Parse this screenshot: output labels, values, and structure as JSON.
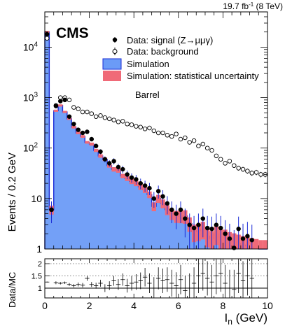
{
  "header": {
    "lumi_prefix": "19.7 fb",
    "lumi_exp": "-1",
    "lumi_suffix": " (8 TeV)"
  },
  "experiment_label": "CMS",
  "region_label": "Barrel",
  "chart_data": [
    {
      "type": "line",
      "title": "",
      "xlabel": "I",
      "xlabel_sub": "n",
      "xlabel_unit": " (GeV)",
      "ylabel": "Events / 0.2 GeV",
      "xlim": [
        0,
        10
      ],
      "ylim": [
        1,
        50000
      ],
      "yscale": "log",
      "grid": false,
      "legend_position": "top-right",
      "x_ticks": [
        "0",
        "2",
        "4",
        "6",
        "8",
        "10"
      ],
      "y_ticks": [
        {
          "base": "1",
          "exp": ""
        },
        {
          "base": "10",
          "exp": ""
        },
        {
          "base": "10",
          "exp": "2"
        },
        {
          "base": "10",
          "exp": "3"
        },
        {
          "base": "10",
          "exp": "4"
        }
      ],
      "bin_width": 0.2,
      "bin_edges_start": 0,
      "colors": {
        "simulation_fill": "#6b9bf7",
        "simulation_line": "#1a2bd6",
        "uncertainty_fill": "#f06a78",
        "signal_point": "#000000",
        "signal_error": "#1a2bd6",
        "background_point": "#000000"
      },
      "legend": [
        {
          "key": "signal",
          "label": "Data: signal (Z→μμγ)"
        },
        {
          "key": "background",
          "label": "Data: background"
        },
        {
          "key": "simulation",
          "label": "Simulation"
        },
        {
          "key": "uncertainty",
          "label": "Simulation: statistical uncertainty"
        }
      ],
      "series": [
        {
          "name": "Simulation",
          "kind": "histogram",
          "values": [
            20000,
            6,
            550,
            700,
            520,
            380,
            260,
            200,
            170,
            130,
            120,
            90,
            70,
            60,
            45,
            38,
            36,
            28,
            25,
            22,
            20,
            17,
            15,
            12,
            7,
            10,
            8,
            6,
            5,
            4.5,
            4.5,
            4.5,
            3.2,
            2.2,
            2.3,
            2.5,
            1.8,
            1.6,
            2.0,
            1.7,
            1.7,
            1.5,
            1.4,
            1.3,
            1.2,
            1.15,
            1.1,
            1.05,
            1.0,
            1.0
          ]
        },
        {
          "name": "Simulation: statistical uncertainty",
          "kind": "band",
          "values": [
            0.05,
            0.2,
            0.05,
            0.05,
            0.05,
            0.05,
            0.06,
            0.06,
            0.06,
            0.06,
            0.07,
            0.07,
            0.08,
            0.08,
            0.09,
            0.1,
            0.1,
            0.1,
            0.11,
            0.12,
            0.12,
            0.13,
            0.14,
            0.15,
            0.2,
            0.18,
            0.2,
            0.22,
            0.25,
            0.27,
            0.28,
            0.3,
            0.32,
            0.38,
            0.38,
            0.38,
            0.4,
            0.42,
            0.4,
            0.42,
            0.42,
            0.44,
            0.46,
            0.48,
            0.5,
            0.5,
            0.5,
            0.5,
            0.5,
            0.5
          ]
        },
        {
          "name": "Data: signal (Z→μμγ)",
          "kind": "points",
          "x": [
            0.1,
            0.3,
            0.5,
            0.7,
            0.9,
            1.1,
            1.3,
            1.5,
            1.7,
            1.9,
            2.1,
            2.3,
            2.5,
            2.7,
            2.9,
            3.1,
            3.3,
            3.5,
            3.7,
            3.9,
            4.1,
            4.3,
            4.5,
            4.7,
            4.9,
            5.1,
            5.3,
            5.5,
            5.7,
            5.9,
            6.1,
            6.3,
            6.5,
            6.7,
            6.9,
            7.1,
            7.3,
            7.5,
            7.7,
            7.9,
            8.1,
            8.3,
            8.5,
            8.7,
            8.9,
            9.1,
            9.3
          ],
          "y": [
            18000,
            6,
            680,
            850,
            900,
            420,
            300,
            230,
            200,
            210,
            150,
            110,
            85,
            60,
            50,
            55,
            42,
            38,
            30,
            26,
            24,
            20,
            18,
            16,
            10,
            14,
            11,
            8,
            6,
            5,
            6,
            4,
            3,
            2.6,
            3,
            4,
            2.6,
            2.5,
            3,
            2.6,
            2,
            1.6,
            1.05,
            2.5,
            1.6,
            1.8,
            1.5
          ]
        },
        {
          "name": "Data: background",
          "kind": "points",
          "x": [
            0.1,
            0.3,
            0.5,
            0.7,
            0.9,
            1.1,
            1.3,
            1.5,
            1.7,
            1.9,
            2.1,
            2.3,
            2.5,
            2.7,
            2.9,
            3.1,
            3.3,
            3.5,
            3.7,
            3.9,
            4.1,
            4.3,
            4.5,
            4.7,
            4.9,
            5.1,
            5.3,
            5.5,
            5.7,
            5.9,
            6.1,
            6.3,
            6.5,
            6.7,
            6.9,
            7.1,
            7.3,
            7.5,
            7.7,
            7.9,
            8.1,
            8.3,
            8.5,
            8.7,
            8.9,
            9.1,
            9.3,
            9.5,
            9.7,
            9.9
          ],
          "y": [
            15000,
            6,
            700,
            1000,
            1000,
            900,
            640,
            600,
            520,
            520,
            480,
            420,
            440,
            400,
            380,
            360,
            330,
            340,
            300,
            290,
            270,
            260,
            240,
            250,
            220,
            200,
            200,
            180,
            170,
            190,
            150,
            160,
            130,
            140,
            110,
            120,
            100,
            90,
            70,
            60,
            50,
            55,
            45,
            40,
            38,
            35,
            32,
            33,
            30,
            30
          ]
        }
      ]
    },
    {
      "type": "scatter",
      "title": "",
      "ylabel": "Data/MC",
      "xlim": [
        0,
        10
      ],
      "ylim": [
        0.6,
        2.2
      ],
      "y_ticks": [
        "1",
        "1.5",
        "2"
      ],
      "reference_lines": [
        1,
        1.5,
        2
      ],
      "series": [
        {
          "name": "",
          "x": [
            0.1,
            0.5,
            0.7,
            0.9,
            1.1,
            1.3,
            1.5,
            1.7,
            1.9,
            2.1,
            2.3,
            2.5,
            2.7,
            2.9,
            3.1,
            3.3,
            3.5,
            3.7,
            3.9,
            4.1,
            4.3,
            4.5,
            4.7,
            4.9,
            5.1,
            5.3,
            5.5,
            5.7,
            5.9,
            6.1,
            6.3,
            6.5,
            6.7,
            6.9,
            7.1,
            7.3,
            7.5,
            7.7,
            7.9,
            8.1,
            8.3,
            8.5,
            8.7,
            8.9,
            9.1,
            9.3
          ],
          "y": [
            1.25,
            1.22,
            1.2,
            1.22,
            1.15,
            1.1,
            1.15,
            1.12,
            1.4,
            1.15,
            1.1,
            1.2,
            1.0,
            1.1,
            1.3,
            1.15,
            1.35,
            1.1,
            1.2,
            1.25,
            1.3,
            1.45,
            1.2,
            1.0,
            1.4,
            1.3,
            1.35,
            1.2,
            1.1,
            1.35,
            0.9,
            1.0,
            1.2,
            1.5,
            1.6,
            1.4,
            1.25,
            1.5,
            1.6,
            1.2,
            1.0,
            0.95,
            1.6,
            1.3,
            1.5,
            1.4
          ],
          "err": [
            0.02,
            0.06,
            0.05,
            0.05,
            0.06,
            0.07,
            0.08,
            0.09,
            0.1,
            0.1,
            0.12,
            0.14,
            0.16,
            0.18,
            0.2,
            0.22,
            0.25,
            0.28,
            0.3,
            0.32,
            0.34,
            0.38,
            0.4,
            0.45,
            0.45,
            0.5,
            0.5,
            0.55,
            0.55,
            0.6,
            0.6,
            0.6,
            0.65,
            0.7,
            0.7,
            0.7,
            0.7,
            0.75,
            0.75,
            0.75,
            0.75,
            0.8,
            0.8,
            0.8,
            0.8,
            0.8
          ]
        }
      ]
    }
  ]
}
